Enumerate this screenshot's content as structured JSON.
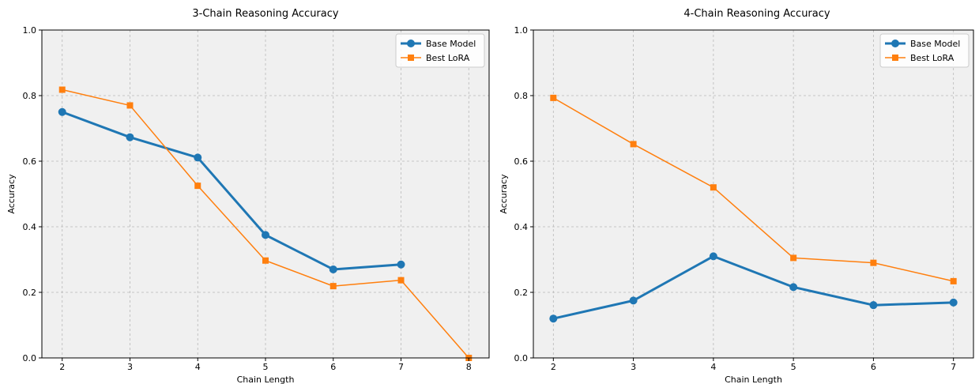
{
  "chart_data": [
    {
      "type": "line",
      "title": "3-Chain Reasoning Accuracy",
      "xlabel": "Chain Length",
      "ylabel": "Accuracy",
      "xlim": [
        1.7,
        8.3
      ],
      "ylim": [
        0.0,
        1.0
      ],
      "xticks": [
        "2",
        "3",
        "4",
        "5",
        "6",
        "7",
        "8"
      ],
      "yticks": [
        "0.0",
        "0.2",
        "0.4",
        "0.6",
        "0.8",
        "1.0"
      ],
      "grid": true,
      "legend_position": "top-right",
      "series": [
        {
          "name": "Base Model",
          "color": "#1f77b4",
          "marker": "circle",
          "x": [
            2,
            3,
            4,
            5,
            6,
            7
          ],
          "y": [
            0.75,
            0.673,
            0.611,
            0.375,
            0.27,
            0.285
          ]
        },
        {
          "name": "Best LoRA",
          "color": "#ff7f0e",
          "marker": "square",
          "x": [
            2,
            3,
            4,
            5,
            6,
            7,
            8
          ],
          "y": [
            0.818,
            0.77,
            0.525,
            0.297,
            0.219,
            0.237,
            0.0
          ]
        }
      ]
    },
    {
      "type": "line",
      "title": "4-Chain Reasoning Accuracy",
      "xlabel": "Chain Length",
      "ylabel": "Accuracy",
      "xlim": [
        1.75,
        7.25
      ],
      "ylim": [
        0.0,
        1.0
      ],
      "xticks": [
        "2",
        "3",
        "4",
        "5",
        "6",
        "7"
      ],
      "yticks": [
        "0.0",
        "0.2",
        "0.4",
        "0.6",
        "0.8",
        "1.0"
      ],
      "grid": true,
      "legend_position": "top-right",
      "series": [
        {
          "name": "Base Model",
          "color": "#1f77b4",
          "marker": "circle",
          "x": [
            2,
            3,
            4,
            5,
            6,
            7
          ],
          "y": [
            0.12,
            0.175,
            0.31,
            0.216,
            0.161,
            0.169
          ]
        },
        {
          "name": "Best LoRA",
          "color": "#ff7f0e",
          "marker": "square",
          "x": [
            2,
            3,
            4,
            5,
            6,
            7
          ],
          "y": [
            0.793,
            0.652,
            0.52,
            0.305,
            0.29,
            0.234
          ]
        }
      ]
    }
  ]
}
